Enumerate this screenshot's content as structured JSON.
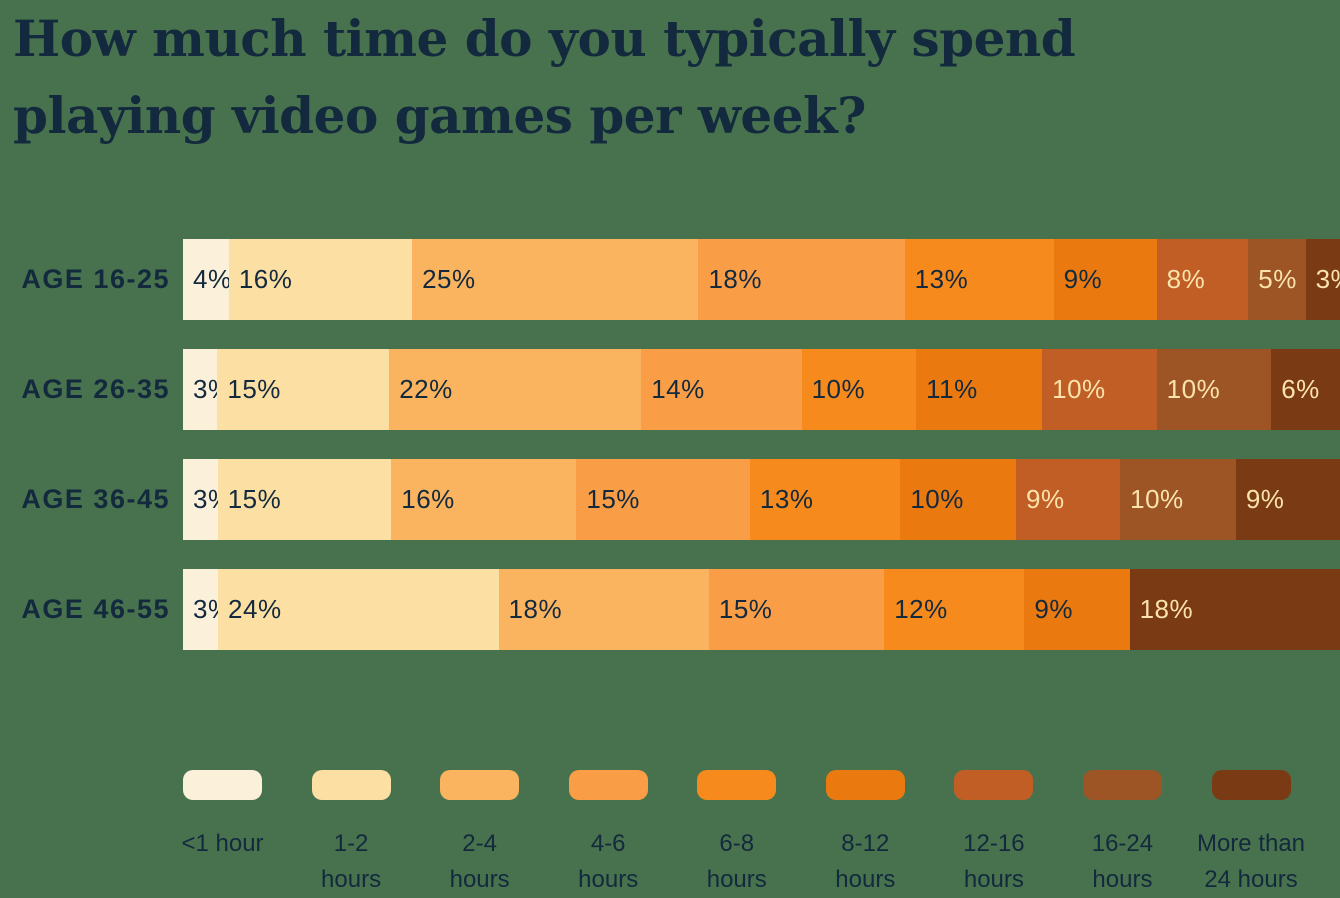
{
  "title_lines": [
    "How much time do you typically spend",
    "playing video games per week?"
  ],
  "colors": {
    "background": "#48724E",
    "text_dark": "#13293D",
    "text_light_on_dark_segments": "#FBE3AC"
  },
  "chart_data": {
    "type": "bar",
    "orientation": "horizontal-stacked",
    "title": "How much time do you typically spend playing video games per week?",
    "unit": "%",
    "categories": [
      "AGE 16-25",
      "AGE 26-35",
      "AGE 36-45",
      "AGE 46-55"
    ],
    "series": [
      {
        "name": "<1 hour",
        "color": "#FBF0DA",
        "values": [
          4,
          3,
          3,
          3
        ]
      },
      {
        "name": "1-2 hours",
        "color": "#FCDFA3",
        "values": [
          16,
          15,
          15,
          24
        ]
      },
      {
        "name": "2-4 hours",
        "color": "#FAB45F",
        "values": [
          25,
          22,
          16,
          18
        ]
      },
      {
        "name": "4-6 hours",
        "color": "#F99D46",
        "values": [
          18,
          14,
          15,
          15
        ]
      },
      {
        "name": "6-8 hours",
        "color": "#F68A1D",
        "values": [
          13,
          10,
          13,
          12
        ]
      },
      {
        "name": "8-12 hours",
        "color": "#EA7A10",
        "values": [
          9,
          11,
          10,
          9
        ]
      },
      {
        "name": "12-16 hours",
        "color": "#C05E25",
        "values": [
          8,
          10,
          9,
          0
        ]
      },
      {
        "name": "16-24 hours",
        "color": "#9D5526",
        "values": [
          5,
          10,
          10,
          0
        ]
      },
      {
        "name": "More than 24 hours",
        "color": "#7A3A14",
        "values": [
          3,
          6,
          9,
          18
        ]
      }
    ],
    "value_labels": "inside-start",
    "value_label_suffix": "%",
    "light_text_from_series_index": 6,
    "legend_position": "bottom",
    "grid": false
  },
  "legend": {
    "items": [
      {
        "label": "<1 hour",
        "lines": [
          "<1 hour"
        ]
      },
      {
        "label": "1-2 hours",
        "lines": [
          "1-2",
          "hours"
        ]
      },
      {
        "label": "2-4 hours",
        "lines": [
          "2-4",
          "hours"
        ]
      },
      {
        "label": "4-6 hours",
        "lines": [
          "4-6",
          "hours"
        ]
      },
      {
        "label": "6-8 hours",
        "lines": [
          "6-8",
          "hours"
        ]
      },
      {
        "label": "8-12 hours",
        "lines": [
          "8-12",
          "hours"
        ]
      },
      {
        "label": "12-16 hours",
        "lines": [
          "12-16",
          "hours"
        ]
      },
      {
        "label": "16-24 hours",
        "lines": [
          "16-24",
          "hours"
        ]
      },
      {
        "label": "More than 24 hours",
        "lines": [
          "More than",
          "24 hours"
        ]
      }
    ]
  }
}
